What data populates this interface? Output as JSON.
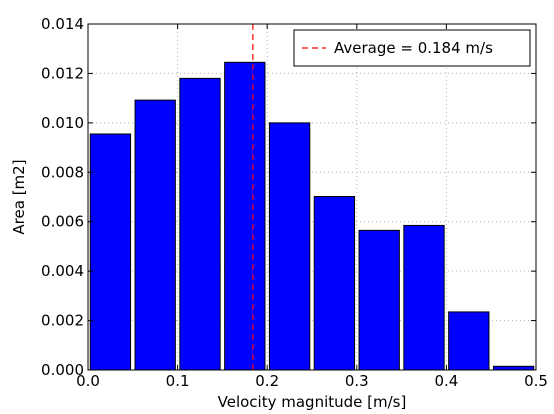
{
  "chart_data": {
    "type": "bar",
    "xlabel": "Velocity magnitude [m/s]",
    "ylabel": "Area [m2]",
    "xlim": [
      0.0,
      0.5
    ],
    "ylim": [
      0.0,
      0.014
    ],
    "xticks": [
      "0.0",
      "0.1",
      "0.2",
      "0.3",
      "0.4",
      "0.5"
    ],
    "yticks": [
      "0.000",
      "0.002",
      "0.004",
      "0.006",
      "0.008",
      "0.010",
      "0.012",
      "0.014"
    ],
    "bin_width": 0.05,
    "bars": [
      {
        "x_start": 0.0,
        "value": 0.00955
      },
      {
        "x_start": 0.05,
        "value": 0.01092
      },
      {
        "x_start": 0.1,
        "value": 0.0118
      },
      {
        "x_start": 0.15,
        "value": 0.01245
      },
      {
        "x_start": 0.2,
        "value": 0.01
      },
      {
        "x_start": 0.25,
        "value": 0.00702
      },
      {
        "x_start": 0.3,
        "value": 0.00565
      },
      {
        "x_start": 0.35,
        "value": 0.00585
      },
      {
        "x_start": 0.4,
        "value": 0.00235
      },
      {
        "x_start": 0.45,
        "value": 0.00015
      }
    ],
    "average_line": {
      "x": 0.184,
      "label": "Average = 0.184 m/s"
    },
    "grid": true,
    "legend_position": "top-right",
    "colors": {
      "bar": "#0000ff",
      "bar_edge": "#000000",
      "average": "#ff0000",
      "grid": "#b0b0b0"
    }
  }
}
